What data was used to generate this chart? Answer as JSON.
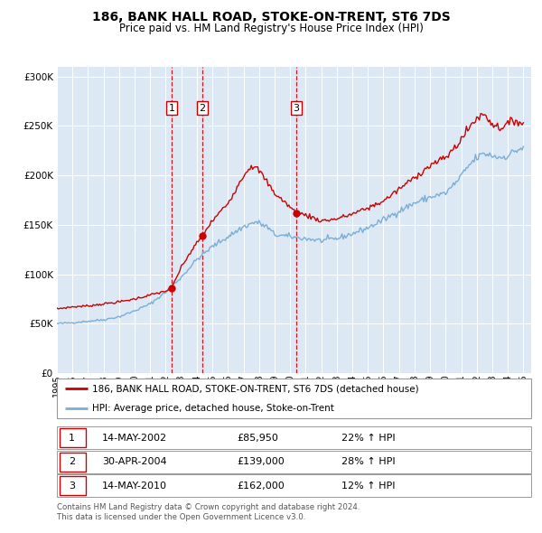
{
  "title": "186, BANK HALL ROAD, STOKE-ON-TRENT, ST6 7DS",
  "subtitle": "Price paid vs. HM Land Registry's House Price Index (HPI)",
  "legend_line1": "186, BANK HALL ROAD, STOKE-ON-TRENT, ST6 7DS (detached house)",
  "legend_line2": "HPI: Average price, detached house, Stoke-on-Trent",
  "footer1": "Contains HM Land Registry data © Crown copyright and database right 2024.",
  "footer2": "This data is licensed under the Open Government Licence v3.0.",
  "sales": [
    {
      "num": 1,
      "date": "2002-05-14",
      "price": 85950,
      "pct": "22%",
      "dir": "↑"
    },
    {
      "num": 2,
      "date": "2004-04-30",
      "price": 139000,
      "pct": "28%",
      "dir": "↑"
    },
    {
      "num": 3,
      "date": "2010-05-14",
      "price": 162000,
      "pct": "12%",
      "dir": "↑"
    }
  ],
  "sale_dates_fmt": [
    "14-MAY-2002",
    "30-APR-2004",
    "14-MAY-2010"
  ],
  "hpi_color": "#7aaed6",
  "price_color": "#cc0000",
  "marker_color": "#cc0000",
  "vline_color": "#cc0000",
  "background_color": "#dce9f5",
  "grid_color": "#ffffff",
  "ylim": [
    0,
    310000
  ],
  "yticks": [
    0,
    50000,
    100000,
    150000,
    200000,
    250000,
    300000
  ],
  "xlim_start": 1995.0,
  "xlim_end": 2025.5,
  "sale_times": [
    2002.37,
    2004.33,
    2010.37
  ],
  "sale_prices": [
    85950,
    139000,
    162000
  ],
  "hpi_anchors": [
    [
      1995.0,
      50000
    ],
    [
      1996.0,
      51000
    ],
    [
      1997.0,
      52500
    ],
    [
      1998.0,
      54000
    ],
    [
      1999.0,
      57000
    ],
    [
      2000.0,
      63000
    ],
    [
      2001.0,
      70000
    ],
    [
      2002.0,
      82000
    ],
    [
      2003.0,
      97000
    ],
    [
      2004.0,
      115000
    ],
    [
      2005.0,
      128000
    ],
    [
      2006.0,
      138000
    ],
    [
      2007.0,
      148000
    ],
    [
      2007.8,
      153000
    ],
    [
      2008.5,
      148000
    ],
    [
      2009.0,
      140000
    ],
    [
      2010.0,
      138000
    ],
    [
      2010.5,
      137000
    ],
    [
      2011.0,
      136000
    ],
    [
      2012.0,
      134000
    ],
    [
      2013.0,
      136000
    ],
    [
      2014.0,
      141000
    ],
    [
      2015.0,
      147000
    ],
    [
      2016.0,
      155000
    ],
    [
      2017.0,
      164000
    ],
    [
      2018.0,
      172000
    ],
    [
      2019.0,
      178000
    ],
    [
      2020.0,
      182000
    ],
    [
      2020.8,
      195000
    ],
    [
      2021.5,
      210000
    ],
    [
      2022.0,
      218000
    ],
    [
      2022.5,
      222000
    ],
    [
      2023.0,
      220000
    ],
    [
      2023.5,
      218000
    ],
    [
      2024.0,
      220000
    ],
    [
      2024.5,
      225000
    ],
    [
      2025.0,
      228000
    ]
  ],
  "price_anchors": [
    [
      1995.0,
      65000
    ],
    [
      1996.0,
      67000
    ],
    [
      1997.0,
      68000
    ],
    [
      1998.0,
      70000
    ],
    [
      1999.0,
      72000
    ],
    [
      2000.0,
      75000
    ],
    [
      2001.0,
      79000
    ],
    [
      2002.0,
      83000
    ],
    [
      2002.37,
      85950
    ],
    [
      2003.0,
      107000
    ],
    [
      2003.5,
      120000
    ],
    [
      2004.33,
      139000
    ],
    [
      2005.0,
      154000
    ],
    [
      2006.0,
      172000
    ],
    [
      2007.0,
      200000
    ],
    [
      2007.5,
      210000
    ],
    [
      2008.0,
      205000
    ],
    [
      2009.0,
      182000
    ],
    [
      2009.5,
      175000
    ],
    [
      2010.0,
      168000
    ],
    [
      2010.37,
      162000
    ],
    [
      2011.0,
      160000
    ],
    [
      2012.0,
      154000
    ],
    [
      2013.0,
      156000
    ],
    [
      2014.0,
      161000
    ],
    [
      2015.0,
      167000
    ],
    [
      2016.0,
      174000
    ],
    [
      2017.0,
      186000
    ],
    [
      2018.0,
      198000
    ],
    [
      2019.0,
      210000
    ],
    [
      2020.0,
      218000
    ],
    [
      2020.8,
      232000
    ],
    [
      2021.5,
      248000
    ],
    [
      2022.0,
      258000
    ],
    [
      2022.5,
      262000
    ],
    [
      2023.0,
      252000
    ],
    [
      2023.5,
      248000
    ],
    [
      2024.0,
      252000
    ],
    [
      2024.5,
      256000
    ],
    [
      2025.0,
      252000
    ]
  ]
}
